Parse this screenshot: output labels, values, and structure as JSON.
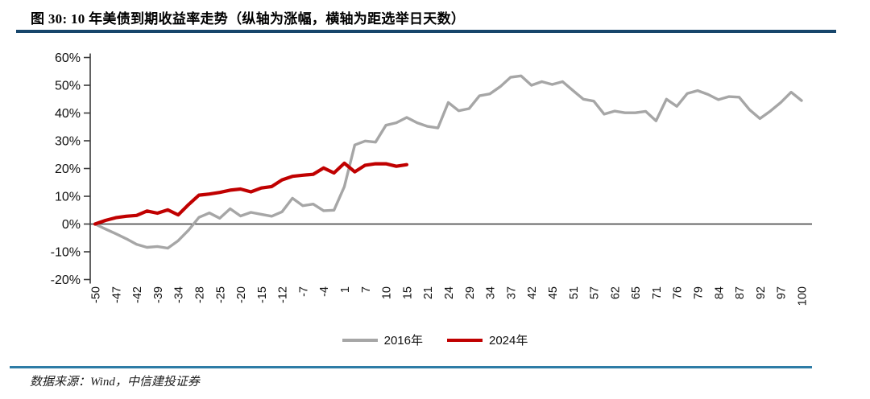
{
  "header": {
    "title": "图 30: 10 年美债到期收益率走势（纵轴为涨幅，横轴为距选举日天数）"
  },
  "footer": {
    "source": "数据来源：Wind，中信建投证券"
  },
  "colors": {
    "header_rule": "#17466B",
    "footer_rule": "#2E7CA6",
    "axis": "#3A3A3A",
    "tick_text": "#111111",
    "series_2016": "#A6A6A6",
    "series_2024": "#C00000"
  },
  "chart_data": {
    "type": "line",
    "title": "图 30: 10 年美债到期收益率走势（纵轴为涨幅，横轴为距选举日天数）",
    "xlabel": "距选举日天数",
    "ylabel": "涨幅",
    "ylim": [
      -20,
      60
    ],
    "grid": false,
    "legend_position": "bottom",
    "y_tick_labels": [
      "60%",
      "50%",
      "40%",
      "30%",
      "20%",
      "10%",
      "0%",
      "-10%",
      "-20%"
    ],
    "y_tick_values": [
      60,
      50,
      40,
      30,
      20,
      10,
      0,
      -10,
      -20
    ],
    "x_tick_labels": [
      "-50",
      "-47",
      "-42",
      "-39",
      "-34",
      "-28",
      "-25",
      "-20",
      "-15",
      "-12",
      "-7",
      "-4",
      "1",
      "7",
      "10",
      "15",
      "21",
      "24",
      "29",
      "34",
      "37",
      "42",
      "45",
      "51",
      "57",
      "62",
      "65",
      "71",
      "76",
      "79",
      "84",
      "87",
      "92",
      "97",
      "100"
    ],
    "points_per_tick": 2,
    "series": [
      {
        "name": "2016年",
        "color_key": "series_2016",
        "values": [
          0.0,
          -1.8,
          -3.5,
          -5.3,
          -7.3,
          -8.4,
          -8.1,
          -8.7,
          -6.0,
          -2.2,
          2.4,
          4.0,
          2.1,
          5.5,
          2.9,
          4.2,
          3.5,
          2.8,
          4.4,
          9.3,
          6.6,
          7.2,
          4.8,
          5.0,
          13.5,
          28.5,
          29.9,
          29.5,
          35.6,
          36.5,
          38.4,
          36.5,
          35.2,
          34.6,
          43.8,
          40.8,
          41.6,
          46.2,
          46.9,
          49.5,
          52.9,
          53.4,
          50.0,
          51.3,
          50.3,
          51.3,
          48.1,
          45.0,
          44.3,
          39.6,
          40.7,
          40.1,
          40.1,
          40.6,
          37.2,
          45.0,
          42.4,
          47.0,
          48.1,
          46.7,
          44.8,
          45.9,
          45.7,
          41.2,
          38.0,
          40.7,
          43.8,
          47.5,
          44.5
        ]
      },
      {
        "name": "2024年",
        "color_key": "series_2024",
        "values": [
          0.0,
          1.3,
          2.3,
          2.8,
          3.1,
          4.7,
          3.9,
          5.1,
          3.3,
          7.0,
          10.4,
          10.8,
          11.4,
          12.2,
          12.6,
          11.6,
          13.0,
          13.5,
          15.9,
          17.2,
          17.6,
          17.9,
          20.2,
          18.4,
          21.9,
          18.8,
          21.2,
          21.7,
          21.7,
          20.8,
          21.4
        ]
      }
    ]
  }
}
